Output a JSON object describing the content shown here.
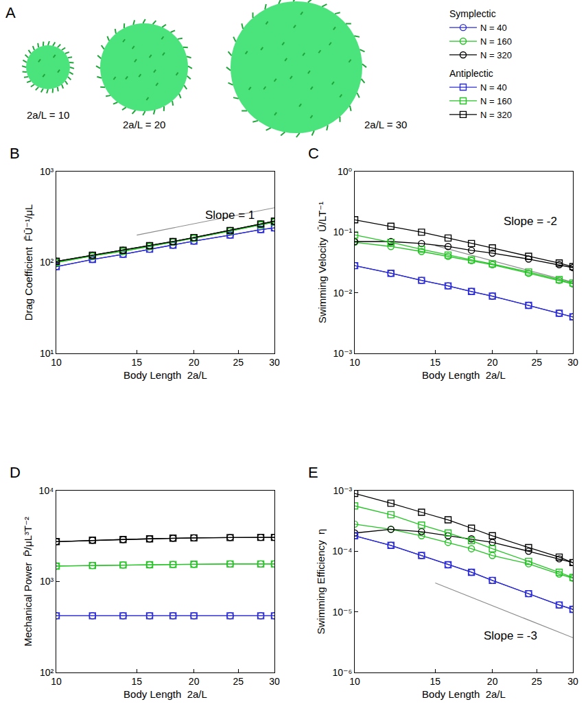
{
  "panel_a": {
    "label": "A",
    "spheres": [
      {
        "label": "2a/L = 10",
        "size": 10
      },
      {
        "label": "2a/L = 20",
        "size": 20
      },
      {
        "label": "2a/L = 30",
        "size": 30
      }
    ]
  },
  "chart_data": [
    {
      "title": "B",
      "type": "line",
      "log": true,
      "legend": "top right",
      "xlabel": "Body Length  2a/L",
      "ylabel": "Drag Coefficient  F̄Ū⁻¹/μL",
      "x": [
        10,
        12,
        14,
        16,
        18,
        20,
        24,
        28,
        30
      ],
      "xlim": [
        10,
        30
      ],
      "xticks": [
        10,
        15,
        20,
        25,
        30
      ],
      "ylim": [
        10,
        1000
      ],
      "yticks": [
        {
          "value": 10,
          "label": "10¹"
        },
        {
          "value": 100,
          "label": "10²"
        },
        {
          "value": 1000,
          "label": "10³"
        }
      ],
      "annotations": [
        {
          "text": "Slope = 1",
          "x": 21,
          "y": 330
        }
      ],
      "reference_line": {
        "x": [
          15,
          30
        ],
        "y": [
          200,
          400
        ]
      },
      "series": [
        {
          "name": "N = 40",
          "group": "Symplectic",
          "color": "#2b2bd6",
          "marker": "circle-open",
          "values": [
            90,
            108,
            123,
            140,
            155,
            172,
            200,
            230,
            240
          ]
        },
        {
          "name": "N = 160",
          "group": "Symplectic",
          "color": "#22c322",
          "marker": "circle-open",
          "values": [
            100,
            118,
            133,
            150,
            168,
            185,
            222,
            260,
            278
          ]
        },
        {
          "name": "N = 320",
          "group": "Symplectic",
          "color": "#000000",
          "marker": "circle-open",
          "values": [
            103,
            120,
            136,
            153,
            170,
            188,
            225,
            265,
            285
          ]
        },
        {
          "name": "N = 40",
          "group": "Antiplectic",
          "color": "#2b2bd6",
          "marker": "square-open",
          "values": [
            90,
            108,
            123,
            140,
            155,
            172,
            200,
            230,
            240
          ]
        },
        {
          "name": "N = 160",
          "group": "Antiplectic",
          "color": "#22c322",
          "marker": "square-open",
          "values": [
            100,
            118,
            133,
            150,
            168,
            185,
            222,
            260,
            278
          ]
        },
        {
          "name": "N = 320",
          "group": "Antiplectic",
          "color": "#000000",
          "marker": "square-open",
          "values": [
            103,
            120,
            136,
            153,
            170,
            188,
            225,
            265,
            285
          ]
        }
      ]
    },
    {
      "title": "C",
      "type": "line",
      "log": true,
      "xlabel": "Body Length  2a/L",
      "ylabel": "Swimming Velocity  Ū/LT⁻¹",
      "x": [
        10,
        12,
        14,
        16,
        18,
        20,
        24,
        28,
        30
      ],
      "xlim": [
        10,
        30
      ],
      "xticks": [
        10,
        15,
        20,
        25,
        30
      ],
      "ylim": [
        0.001,
        1
      ],
      "yticks": [
        {
          "value": 0.001,
          "label": "10⁻³"
        },
        {
          "value": 0.01,
          "label": "10⁻²"
        },
        {
          "value": 0.1,
          "label": "10⁻¹"
        },
        {
          "value": 1,
          "label": "10⁰"
        }
      ],
      "annotations": [
        {
          "text": "Slope = -2",
          "x": 21,
          "y": 0.15
        }
      ],
      "reference_line": {
        "x": [
          15,
          30
        ],
        "y": [
          0.06,
          0.015
        ]
      },
      "series": [
        {
          "name": "N = 40",
          "group": "Symplectic",
          "color": "#2b2bd6",
          "marker": "circle-open",
          "values": [
            0.028,
            0.021,
            0.016,
            0.013,
            0.0105,
            0.0088,
            0.0062,
            0.0046,
            0.004
          ]
        },
        {
          "name": "N = 160",
          "group": "Symplectic",
          "color": "#22c322",
          "marker": "circle-open",
          "values": [
            0.068,
            0.058,
            0.048,
            0.04,
            0.034,
            0.029,
            0.021,
            0.016,
            0.014
          ]
        },
        {
          "name": "N = 320",
          "group": "Symplectic",
          "color": "#000000",
          "marker": "circle-open",
          "values": [
            0.07,
            0.07,
            0.065,
            0.058,
            0.05,
            0.045,
            0.036,
            0.029,
            0.026
          ]
        },
        {
          "name": "N = 40",
          "group": "Antiplectic",
          "color": "#2b2bd6",
          "marker": "square-open",
          "values": [
            0.028,
            0.021,
            0.016,
            0.013,
            0.0105,
            0.0088,
            0.0062,
            0.0046,
            0.004
          ]
        },
        {
          "name": "N = 160",
          "group": "Antiplectic",
          "color": "#22c322",
          "marker": "square-open",
          "values": [
            0.09,
            0.068,
            0.052,
            0.042,
            0.035,
            0.03,
            0.022,
            0.0165,
            0.0145
          ]
        },
        {
          "name": "N = 320",
          "group": "Antiplectic",
          "color": "#000000",
          "marker": "square-open",
          "values": [
            0.16,
            0.125,
            0.1,
            0.08,
            0.065,
            0.055,
            0.04,
            0.031,
            0.027
          ]
        }
      ]
    },
    {
      "title": "D",
      "type": "line",
      "log": true,
      "xlabel": "Body Length  2a/L",
      "ylabel": "Mechanical Power  P̄/μL³T⁻²",
      "x": [
        10,
        12,
        14,
        16,
        18,
        20,
        24,
        28,
        30
      ],
      "xlim": [
        10,
        30
      ],
      "xticks": [
        10,
        15,
        20,
        25,
        30
      ],
      "ylim": [
        100,
        10000
      ],
      "yticks": [
        {
          "value": 100,
          "label": "10²"
        },
        {
          "value": 1000,
          "label": "10³"
        },
        {
          "value": 10000,
          "label": "10⁴"
        }
      ],
      "series": [
        {
          "name": "N = 40",
          "group": "Symplectic",
          "color": "#2b2bd6",
          "marker": "circle-open",
          "values": [
            420,
            420,
            420,
            420,
            420,
            420,
            420,
            420,
            420
          ]
        },
        {
          "name": "N = 160",
          "group": "Symplectic",
          "color": "#22c322",
          "marker": "circle-open",
          "values": [
            1480,
            1500,
            1520,
            1530,
            1540,
            1550,
            1560,
            1560,
            1560
          ]
        },
        {
          "name": "N = 320",
          "group": "Symplectic",
          "color": "#000000",
          "marker": "circle-open",
          "values": [
            2750,
            2850,
            2900,
            2950,
            3000,
            3020,
            3050,
            3060,
            3060
          ]
        },
        {
          "name": "N = 40",
          "group": "Antiplectic",
          "color": "#2b2bd6",
          "marker": "square-open",
          "values": [
            420,
            420,
            420,
            420,
            420,
            420,
            420,
            420,
            420
          ]
        },
        {
          "name": "N = 160",
          "group": "Antiplectic",
          "color": "#22c322",
          "marker": "square-open",
          "values": [
            1480,
            1500,
            1520,
            1530,
            1540,
            1550,
            1560,
            1560,
            1560
          ]
        },
        {
          "name": "N = 320",
          "group": "Antiplectic",
          "color": "#000000",
          "marker": "square-open",
          "values": [
            2750,
            2850,
            2900,
            2950,
            3000,
            3020,
            3050,
            3060,
            3060
          ]
        }
      ]
    },
    {
      "title": "E",
      "type": "line",
      "log": true,
      "xlabel": "Body Length  2a/L",
      "ylabel": "Swimming Efficiency  η",
      "x": [
        10,
        12,
        14,
        16,
        18,
        20,
        24,
        28,
        30
      ],
      "xlim": [
        10,
        30
      ],
      "xticks": [
        10,
        15,
        20,
        25,
        30
      ],
      "ylim": [
        1e-06,
        0.001
      ],
      "yticks": [
        {
          "value": 1e-06,
          "label": "10⁻⁶"
        },
        {
          "value": 1e-05,
          "label": "10⁻⁵"
        },
        {
          "value": 0.0001,
          "label": "10⁻⁴"
        },
        {
          "value": 0.001,
          "label": "10⁻³"
        }
      ],
      "annotations": [
        {
          "text": "Slope = -3",
          "x": 19,
          "y": 4e-06
        }
      ],
      "reference_line": {
        "x": [
          15,
          30
        ],
        "y": [
          3e-05,
          3.75e-06
        ]
      },
      "series": [
        {
          "name": "N = 40",
          "group": "Symplectic",
          "color": "#2b2bd6",
          "marker": "circle-open",
          "values": [
            0.00018,
            0.000125,
            8.5e-05,
            6e-05,
            4.5e-05,
            3.3e-05,
            2e-05,
            1.3e-05,
            1.1e-05
          ]
        },
        {
          "name": "N = 160",
          "group": "Symplectic",
          "color": "#22c322",
          "marker": "circle-open",
          "values": [
            0.00028,
            0.00023,
            0.00018,
            0.00014,
            0.00011,
            8.5e-05,
            6.2e-05,
            4.2e-05,
            3.6e-05
          ]
        },
        {
          "name": "N = 320",
          "group": "Symplectic",
          "color": "#000000",
          "marker": "circle-open",
          "values": [
            0.0002,
            0.00023,
            0.00021,
            0.00018,
            0.00016,
            0.00014,
            0.0001,
            7.5e-05,
            6.5e-05
          ]
        },
        {
          "name": "N = 40",
          "group": "Antiplectic",
          "color": "#2b2bd6",
          "marker": "square-open",
          "values": [
            0.00018,
            0.000125,
            8.5e-05,
            6e-05,
            4.5e-05,
            3.3e-05,
            2e-05,
            1.3e-05,
            1.1e-05
          ]
        },
        {
          "name": "N = 160",
          "group": "Antiplectic",
          "color": "#22c322",
          "marker": "square-open",
          "values": [
            0.00056,
            0.0004,
            0.00027,
            0.0002,
            0.00015,
            0.00011,
            6.8e-05,
            4.5e-05,
            3.7e-05
          ]
        },
        {
          "name": "N = 320",
          "group": "Antiplectic",
          "color": "#000000",
          "marker": "square-open",
          "values": [
            0.0009,
            0.00062,
            0.00044,
            0.00033,
            0.00024,
            0.00018,
            0.000115,
            8e-05,
            6.5e-05
          ]
        }
      ]
    }
  ]
}
